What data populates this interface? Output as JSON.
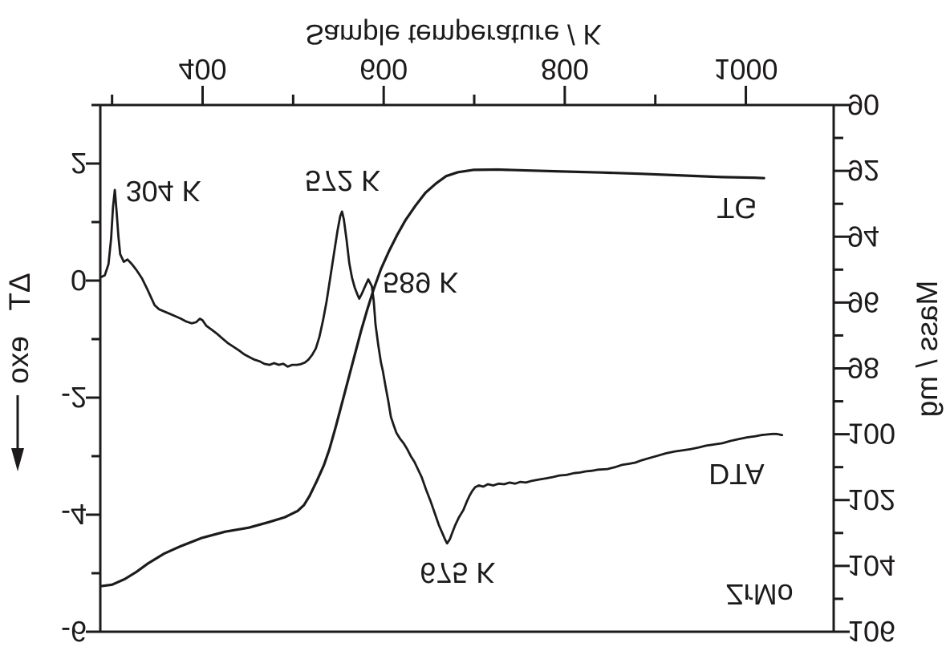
{
  "figure": {
    "display_note": "entire figure rendered vertically mirrored (upside-down text)",
    "ink_color": "#1d1a1b",
    "background": "#ffffff"
  },
  "chart_data": {
    "type": "line",
    "xlabel": "Sample temperature / K",
    "ylabel_left": "ΔT",
    "exo_label": "exo",
    "ylabel_right": "Mass / mg",
    "sample_label": "ZrMo",
    "x_range": [
      287,
      1097
    ],
    "dt_range": [
      -6,
      3
    ],
    "mass_range": [
      90,
      106
    ],
    "x_ticks_major": [
      400,
      600,
      800,
      1000
    ],
    "x_ticks_minor": [
      300,
      500,
      700,
      900
    ],
    "dt_ticks_major": [
      2,
      0,
      -2,
      -4,
      -6
    ],
    "dt_ticks_minor": [
      3,
      1,
      -1,
      -3,
      -5
    ],
    "mass_ticks_major": [
      90,
      92,
      94,
      96,
      98,
      100,
      102,
      104,
      106
    ],
    "mass_ticks_minor": [
      91,
      93,
      95,
      97,
      99,
      101,
      103,
      105
    ],
    "grid": false,
    "legend": "inline curve labels",
    "series": [
      {
        "name": "TG",
        "axis": "mass",
        "points": [
          [
            289,
            104.61
          ],
          [
            300,
            104.57
          ],
          [
            314,
            104.4
          ],
          [
            327,
            104.18
          ],
          [
            340,
            103.92
          ],
          [
            358,
            103.62
          ],
          [
            376,
            103.4
          ],
          [
            399,
            103.15
          ],
          [
            425,
            102.96
          ],
          [
            451,
            102.84
          ],
          [
            473,
            102.67
          ],
          [
            491,
            102.52
          ],
          [
            505,
            102.33
          ],
          [
            512,
            102.15
          ],
          [
            518,
            101.88
          ],
          [
            526,
            101.43
          ],
          [
            534,
            100.94
          ],
          [
            540,
            100.46
          ],
          [
            547,
            99.78
          ],
          [
            554,
            99.05
          ],
          [
            561,
            98.32
          ],
          [
            568,
            97.59
          ],
          [
            575,
            96.86
          ],
          [
            582,
            96.2
          ],
          [
            589,
            95.59
          ],
          [
            597,
            94.98
          ],
          [
            606,
            94.43
          ],
          [
            615,
            93.94
          ],
          [
            624,
            93.5
          ],
          [
            635,
            93.06
          ],
          [
            646,
            92.67
          ],
          [
            658,
            92.38
          ],
          [
            669,
            92.16
          ],
          [
            682,
            92.04
          ],
          [
            699,
            91.97
          ],
          [
            726,
            91.96
          ],
          [
            761,
            91.99
          ],
          [
            797,
            92.02
          ],
          [
            841,
            92.05
          ],
          [
            885,
            92.09
          ],
          [
            930,
            92.14
          ],
          [
            974,
            92.19
          ],
          [
            1010,
            92.21
          ],
          [
            1020,
            92.22
          ]
        ]
      },
      {
        "name": "DTA",
        "axis": "dt",
        "points": [
          [
            288,
            0.06
          ],
          [
            292,
            0.09
          ],
          [
            296,
            0.28
          ],
          [
            299,
            0.72
          ],
          [
            301,
            1.25
          ],
          [
            303,
            1.55
          ],
          [
            305,
            1.18
          ],
          [
            307,
            0.75
          ],
          [
            309,
            0.45
          ],
          [
            313,
            0.32
          ],
          [
            317,
            0.36
          ],
          [
            322,
            0.28
          ],
          [
            327,
            0.18
          ],
          [
            333,
            0.04
          ],
          [
            339,
            -0.15
          ],
          [
            347,
            -0.42
          ],
          [
            352,
            -0.49
          ],
          [
            358,
            -0.53
          ],
          [
            364,
            -0.57
          ],
          [
            370,
            -0.61
          ],
          [
            376,
            -0.65
          ],
          [
            382,
            -0.7
          ],
          [
            388,
            -0.73
          ],
          [
            393,
            -0.71
          ],
          [
            397,
            -0.65
          ],
          [
            400,
            -0.68
          ],
          [
            404,
            -0.77
          ],
          [
            410,
            -0.84
          ],
          [
            416,
            -0.91
          ],
          [
            422,
            -0.99
          ],
          [
            428,
            -1.07
          ],
          [
            434,
            -1.13
          ],
          [
            440,
            -1.19
          ],
          [
            446,
            -1.26
          ],
          [
            452,
            -1.31
          ],
          [
            457,
            -1.35
          ],
          [
            463,
            -1.38
          ],
          [
            468,
            -1.42
          ],
          [
            474,
            -1.44
          ],
          [
            479,
            -1.41
          ],
          [
            484,
            -1.44
          ],
          [
            489,
            -1.42
          ],
          [
            494,
            -1.47
          ],
          [
            499,
            -1.44
          ],
          [
            504,
            -1.44
          ],
          [
            508,
            -1.43
          ],
          [
            513,
            -1.4
          ],
          [
            517,
            -1.35
          ],
          [
            521,
            -1.27
          ],
          [
            525,
            -1.16
          ],
          [
            529,
            -0.96
          ],
          [
            533,
            -0.68
          ],
          [
            537,
            -0.35
          ],
          [
            541,
            0.05
          ],
          [
            545,
            0.45
          ],
          [
            549,
            0.85
          ],
          [
            552,
            1.1
          ],
          [
            554,
            1.18
          ],
          [
            556,
            1.05
          ],
          [
            559,
            0.7
          ],
          [
            562,
            0.3
          ],
          [
            565,
            0.05
          ],
          [
            568,
            -0.12
          ],
          [
            571,
            -0.24
          ],
          [
            573,
            -0.31
          ],
          [
            576,
            -0.22
          ],
          [
            580,
            -0.08
          ],
          [
            583,
            0.02
          ],
          [
            585,
            -0.04
          ],
          [
            587,
            -0.1
          ],
          [
            589,
            -0.35
          ],
          [
            591,
            -0.75
          ],
          [
            594,
            -1.1
          ],
          [
            597,
            -1.4
          ],
          [
            599,
            -1.54
          ],
          [
            602,
            -1.8
          ],
          [
            605,
            -2.05
          ],
          [
            608,
            -2.33
          ],
          [
            611,
            -2.47
          ],
          [
            614,
            -2.6
          ],
          [
            618,
            -2.7
          ],
          [
            622,
            -2.78
          ],
          [
            626,
            -2.88
          ],
          [
            630,
            -3.0
          ],
          [
            634,
            -3.1
          ],
          [
            638,
            -3.23
          ],
          [
            642,
            -3.36
          ],
          [
            647,
            -3.58
          ],
          [
            652,
            -3.78
          ],
          [
            657,
            -4.0
          ],
          [
            661,
            -4.18
          ],
          [
            665,
            -4.32
          ],
          [
            668,
            -4.43
          ],
          [
            670,
            -4.49
          ],
          [
            673,
            -4.42
          ],
          [
            676,
            -4.3
          ],
          [
            679,
            -4.18
          ],
          [
            683,
            -4.05
          ],
          [
            688,
            -3.92
          ],
          [
            692,
            -3.77
          ],
          [
            695,
            -3.67
          ],
          [
            698,
            -3.59
          ],
          [
            701,
            -3.53
          ],
          [
            705,
            -3.5
          ],
          [
            710,
            -3.52
          ],
          [
            715,
            -3.48
          ],
          [
            721,
            -3.5
          ],
          [
            727,
            -3.47
          ],
          [
            733,
            -3.48
          ],
          [
            739,
            -3.45
          ],
          [
            745,
            -3.47
          ],
          [
            751,
            -3.44
          ],
          [
            757,
            -3.45
          ],
          [
            764,
            -3.42
          ],
          [
            771,
            -3.4
          ],
          [
            779,
            -3.38
          ],
          [
            786,
            -3.36
          ],
          [
            794,
            -3.33
          ],
          [
            802,
            -3.32
          ],
          [
            810,
            -3.29
          ],
          [
            817,
            -3.28
          ],
          [
            823,
            -3.26
          ],
          [
            830,
            -3.25
          ],
          [
            837,
            -3.23
          ],
          [
            847,
            -3.22
          ],
          [
            855,
            -3.19
          ],
          [
            863,
            -3.15
          ],
          [
            871,
            -3.13
          ],
          [
            878,
            -3.11
          ],
          [
            885,
            -3.07
          ],
          [
            894,
            -3.03
          ],
          [
            903,
            -2.99
          ],
          [
            912,
            -2.95
          ],
          [
            921,
            -2.92
          ],
          [
            930,
            -2.9
          ],
          [
            939,
            -2.88
          ],
          [
            948,
            -2.85
          ],
          [
            956,
            -2.82
          ],
          [
            965,
            -2.8
          ],
          [
            974,
            -2.78
          ],
          [
            983,
            -2.74
          ],
          [
            992,
            -2.71
          ],
          [
            1001,
            -2.68
          ],
          [
            1010,
            -2.66
          ],
          [
            1017,
            -2.64
          ],
          [
            1023,
            -2.63
          ],
          [
            1029,
            -2.62
          ],
          [
            1034,
            -2.62
          ],
          [
            1040,
            -2.64
          ]
        ]
      }
    ],
    "annotations": [
      {
        "text": "304 K",
        "axis": "dt",
        "k": 315,
        "v": 1.7,
        "size": 36
      },
      {
        "text": "572 K",
        "axis": "dt",
        "k": 513,
        "v": 1.88,
        "size": 36
      },
      {
        "text": "589 K",
        "axis": "dt",
        "k": 599,
        "v": 0.14,
        "size": 36
      },
      {
        "text": "675 K",
        "axis": "dt",
        "k": 640,
        "v": -4.82,
        "size": 36
      },
      {
        "text": "TG",
        "axis": "mass",
        "k": 968,
        "v": 92.82,
        "size": 37
      },
      {
        "text": "DTA",
        "axis": "dt",
        "k": 959,
        "v": -3.14,
        "size": 37
      },
      {
        "text": "ZrMo",
        "axis": "dt",
        "k": 978,
        "v": -5.19,
        "size": 26
      }
    ]
  }
}
